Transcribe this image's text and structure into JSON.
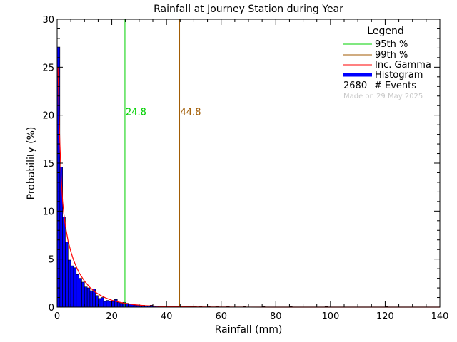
{
  "chart_data": {
    "type": "bar",
    "title": "Rainfall at Journey Station during Year",
    "xlabel": "Rainfall (mm)",
    "ylabel": "Probability (%)",
    "xlim": [
      0,
      140
    ],
    "ylim": [
      0,
      30
    ],
    "x_ticks": [
      "0",
      "20",
      "40",
      "60",
      "80",
      "100",
      "120",
      "140"
    ],
    "y_ticks": [
      "0",
      "5",
      "10",
      "15",
      "20",
      "25",
      "30"
    ],
    "bin_width_mm": 1,
    "histogram": {
      "name": "Histogram",
      "color": "#0000ff",
      "bin_starts": [
        0,
        1,
        2,
        3,
        4,
        5,
        6,
        7,
        8,
        9,
        10,
        11,
        12,
        13,
        14,
        15,
        16,
        17,
        18,
        19,
        20,
        21,
        22,
        23,
        24,
        25,
        26,
        27,
        28,
        29,
        30,
        31,
        32,
        33,
        34,
        35,
        36,
        37,
        38,
        39,
        40,
        41,
        42,
        43,
        44,
        45,
        46,
        47,
        48,
        49,
        50,
        52,
        55,
        58,
        62,
        68,
        75,
        85,
        98,
        120
      ],
      "values": [
        27.1,
        14.6,
        9.4,
        6.8,
        4.9,
        4.3,
        4.1,
        3.4,
        3.0,
        2.6,
        2.1,
        2.0,
        1.7,
        1.9,
        1.2,
        0.9,
        1.0,
        0.6,
        0.7,
        0.6,
        0.6,
        0.8,
        0.5,
        0.4,
        0.5,
        0.4,
        0.3,
        0.3,
        0.2,
        0.2,
        0.1,
        0.2,
        0.1,
        0.1,
        0.2,
        0.1,
        0.1,
        0.1,
        0.05,
        0.05,
        0.1,
        0.05,
        0.05,
        0.05,
        0.1,
        0.05,
        0.05,
        0.05,
        0.05,
        0.05,
        0.05,
        0.05,
        0.05,
        0.05,
        0.05,
        0.05,
        0.05,
        0.05,
        0.05,
        0.05
      ]
    },
    "fit_curve": {
      "name": "Inc. Gamma",
      "color": "#ff0000",
      "x": [
        0.3,
        0.6,
        1,
        1.5,
        2,
        2.5,
        3,
        4,
        5,
        6,
        7,
        8,
        10,
        12,
        14,
        16,
        18,
        20,
        22,
        25,
        28,
        32,
        36,
        40,
        45,
        50,
        60,
        70,
        80,
        100,
        120,
        140
      ],
      "y": [
        25.0,
        21.0,
        17.0,
        13.5,
        11.0,
        9.6,
        8.5,
        6.9,
        5.8,
        4.9,
        4.2,
        3.6,
        2.7,
        2.05,
        1.55,
        1.2,
        0.92,
        0.72,
        0.56,
        0.38,
        0.26,
        0.16,
        0.1,
        0.06,
        0.035,
        0.02,
        0.008,
        0.003,
        0.001,
        0.0,
        0.0,
        0.0
      ]
    },
    "vlines": [
      {
        "name": "95th %",
        "x": 24.8,
        "label": "24.8",
        "color": "#00d000"
      },
      {
        "name": "99th %",
        "x": 44.8,
        "label": "44.8",
        "color": "#a05a00"
      }
    ],
    "legend": {
      "title": "Legend",
      "position": "top-right",
      "entries": [
        "95th %",
        "99th %",
        "Inc. Gamma",
        "Histogram"
      ],
      "events_count": "2680",
      "events_label": "# Events",
      "stamp": "Made on 29 May 2025"
    }
  }
}
